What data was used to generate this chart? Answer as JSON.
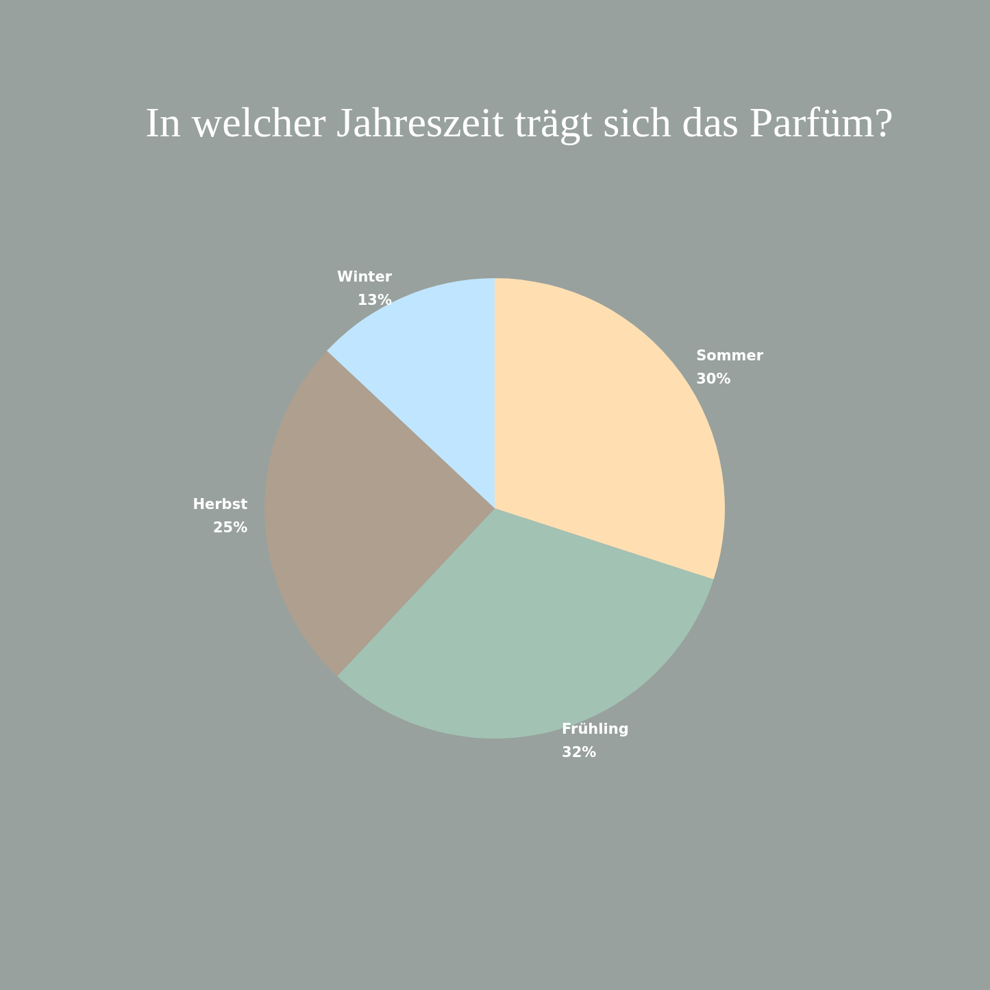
{
  "chart_data": {
    "type": "pie",
    "title": "In welcher Jahreszeit trägt sich das Parfüm?",
    "categories": [
      "Sommer",
      "Frühling",
      "Herbst",
      "Winter"
    ],
    "values": [
      30,
      32,
      25,
      13
    ],
    "value_labels": [
      "30%",
      "32%",
      "25%",
      "13%"
    ],
    "colors": [
      "#ffdfb2",
      "#a2c2b4",
      "#ae9f8f",
      "#c0e6ff"
    ],
    "legend": false
  }
}
